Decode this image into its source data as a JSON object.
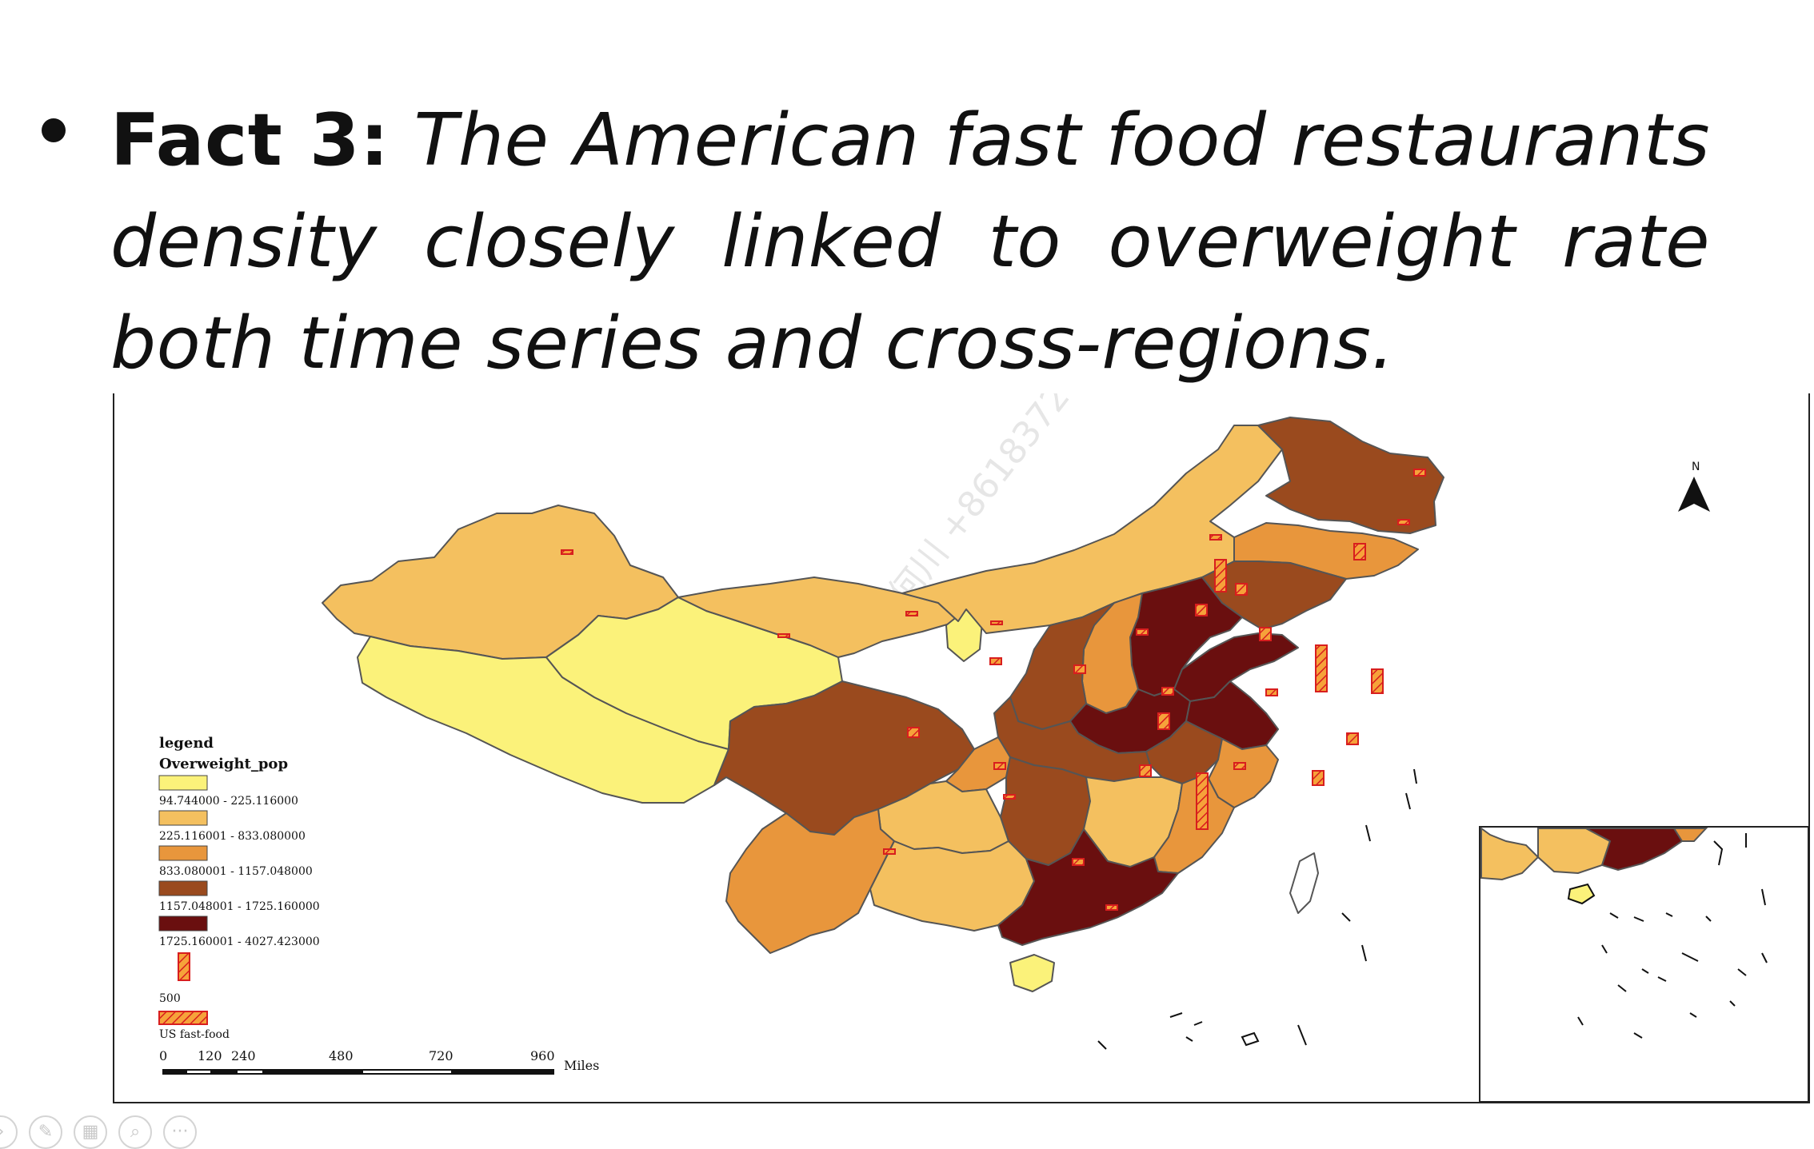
{
  "slide": {
    "bullet_label": "Fact 3:",
    "bullet_text": " The American fast food restaurants density closely linked to overweight rate both time series and cross-regions."
  },
  "watermark": "何川 +8618372168",
  "map": {
    "north_label": "N",
    "legend": {
      "title": "legend",
      "layer": "Overweight_pop",
      "classes": [
        {
          "label": "94.744000 - 225.116000",
          "color": "#fbf27a"
        },
        {
          "label": "225.116001 - 833.080000",
          "color": "#f4c05f"
        },
        {
          "label": "833.080001 - 1157.048000",
          "color": "#e8963c"
        },
        {
          "label": "1157.048001 - 1725.160000",
          "color": "#9a4a1e"
        },
        {
          "label": "1725.160001 - 4027.423000",
          "color": "#6a0f0f"
        }
      ],
      "bar_value": "500",
      "bar_label": "US fast-food"
    },
    "scale": {
      "ticks": [
        "0",
        "120",
        "240",
        "480",
        "720",
        "960"
      ],
      "unit": "Miles"
    },
    "colors": {
      "bar_fill": "#f6a23a",
      "bar_stroke": "#d81e1e",
      "border": "#555555"
    }
  },
  "toolbar": {
    "icons": [
      "arrow-icon",
      "pen-icon",
      "slides-icon",
      "zoom-icon",
      "more-icon"
    ]
  }
}
